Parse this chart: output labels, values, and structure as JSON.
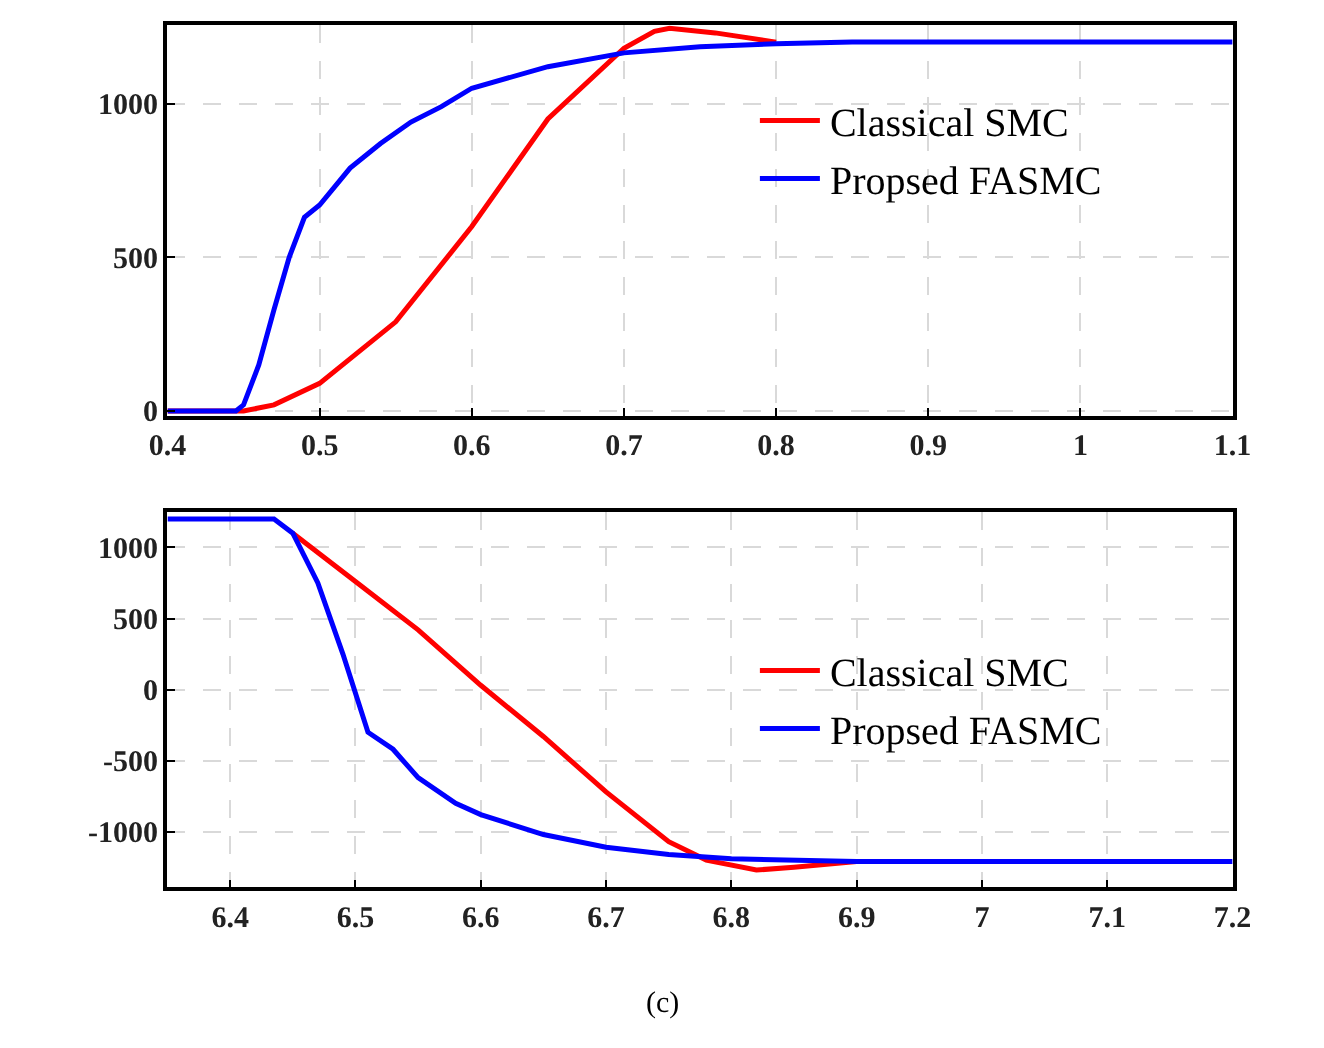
{
  "chart_data": [
    {
      "type": "line",
      "xlim": [
        0.4,
        1.1
      ],
      "xticks": [
        0.4,
        0.5,
        0.6,
        0.7,
        0.8,
        0.9,
        {
          "value": 1.0,
          "label": "1"
        },
        1.1
      ],
      "ylim": [
        -15,
        1255
      ],
      "yticks": [
        0,
        500,
        1000
      ],
      "grid": true,
      "legend": "right",
      "line_style": "solid",
      "marker": "none",
      "series": [
        {
          "name": "Classical SMC",
          "color": "#ff0000",
          "x": [
            0.4,
            0.45,
            0.47,
            0.5,
            0.55,
            0.6,
            0.65,
            0.7,
            0.72,
            0.73,
            0.76,
            0.8
          ],
          "values": [
            0,
            0,
            20,
            90,
            290,
            600,
            950,
            1180,
            1235,
            1245,
            1230,
            1200
          ]
        },
        {
          "name": "Propsed FASMC",
          "color": "#0000ff",
          "x": [
            0.4,
            0.445,
            0.45,
            0.46,
            0.47,
            0.48,
            0.49,
            0.5,
            0.52,
            0.54,
            0.56,
            0.58,
            0.6,
            0.65,
            0.7,
            0.75,
            0.8,
            0.85,
            0.9,
            1.0,
            1.1
          ],
          "values": [
            0,
            0,
            20,
            150,
            330,
            500,
            630,
            670,
            790,
            870,
            940,
            990,
            1050,
            1120,
            1165,
            1185,
            1195,
            1200,
            1200,
            1200,
            1200
          ]
        }
      ]
    },
    {
      "type": "line",
      "xlim": [
        6.35,
        7.2
      ],
      "xticks": [
        6.4,
        6.5,
        6.6,
        6.7,
        6.8,
        6.9,
        {
          "value": 7.0,
          "label": "7"
        },
        7.1,
        7.2
      ],
      "ylim": [
        -1390,
        1250
      ],
      "yticks": [
        -1000,
        -500,
        0,
        500,
        1000
      ],
      "grid": true,
      "legend": "right",
      "line_style": "solid",
      "marker": "none",
      "annotations": [
        "(c)"
      ],
      "series": [
        {
          "name": "Classical SMC",
          "color": "#ff0000",
          "x": [
            6.45,
            6.5,
            6.55,
            6.6,
            6.65,
            6.7,
            6.75,
            6.78,
            6.82,
            6.85,
            6.9
          ],
          "values": [
            1100,
            760,
            420,
            30,
            -330,
            -720,
            -1070,
            -1200,
            -1270,
            -1250,
            -1210
          ]
        },
        {
          "name": "Propsed FASMC",
          "color": "#0000ff",
          "x": [
            6.35,
            6.435,
            6.45,
            6.47,
            6.49,
            6.51,
            6.53,
            6.55,
            6.58,
            6.6,
            6.65,
            6.7,
            6.75,
            6.8,
            6.9,
            7.0,
            7.2
          ],
          "values": [
            1200,
            1200,
            1100,
            750,
            250,
            -300,
            -420,
            -620,
            -800,
            -880,
            -1020,
            -1110,
            -1160,
            -1190,
            -1210,
            -1210,
            -1210
          ]
        }
      ]
    }
  ]
}
